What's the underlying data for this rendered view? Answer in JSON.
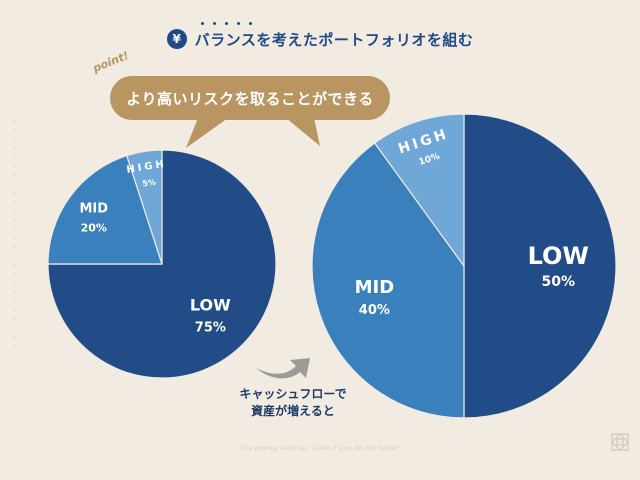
{
  "header": {
    "icon": "yen-icon",
    "icon_glyph": "¥",
    "title": "バランスを考えたポートフォリオを組む"
  },
  "callout": {
    "point_label": "point!",
    "text": "より高いリスクを取ることができる"
  },
  "colors": {
    "background": "#f1ebe2",
    "low": "#214c88",
    "mid": "#3a80bd",
    "high": "#6fa7d6",
    "callout": "#b99661",
    "navy": "#1f4a86"
  },
  "chart_data": [
    {
      "type": "pie",
      "slices": [
        {
          "label": "LOW",
          "value": 75,
          "display": "75%"
        },
        {
          "label": "MID",
          "value": 20,
          "display": "20%"
        },
        {
          "label": "HIGH",
          "value": 5,
          "display": "5%"
        }
      ]
    },
    {
      "type": "pie",
      "slices": [
        {
          "label": "LOW",
          "value": 50,
          "display": "50%"
        },
        {
          "label": "MID",
          "value": 40,
          "display": "40%"
        },
        {
          "label": "HIGH",
          "value": 10,
          "display": "10%"
        }
      ]
    }
  ],
  "caption": {
    "line1": "キャッシュフローで",
    "line2": "資産が増えると"
  },
  "footer": {
    "prefix": "The money seminar",
    "quote": "\"Lose if you do not know\""
  },
  "logo": {
    "icon": "grid-logo-icon"
  }
}
